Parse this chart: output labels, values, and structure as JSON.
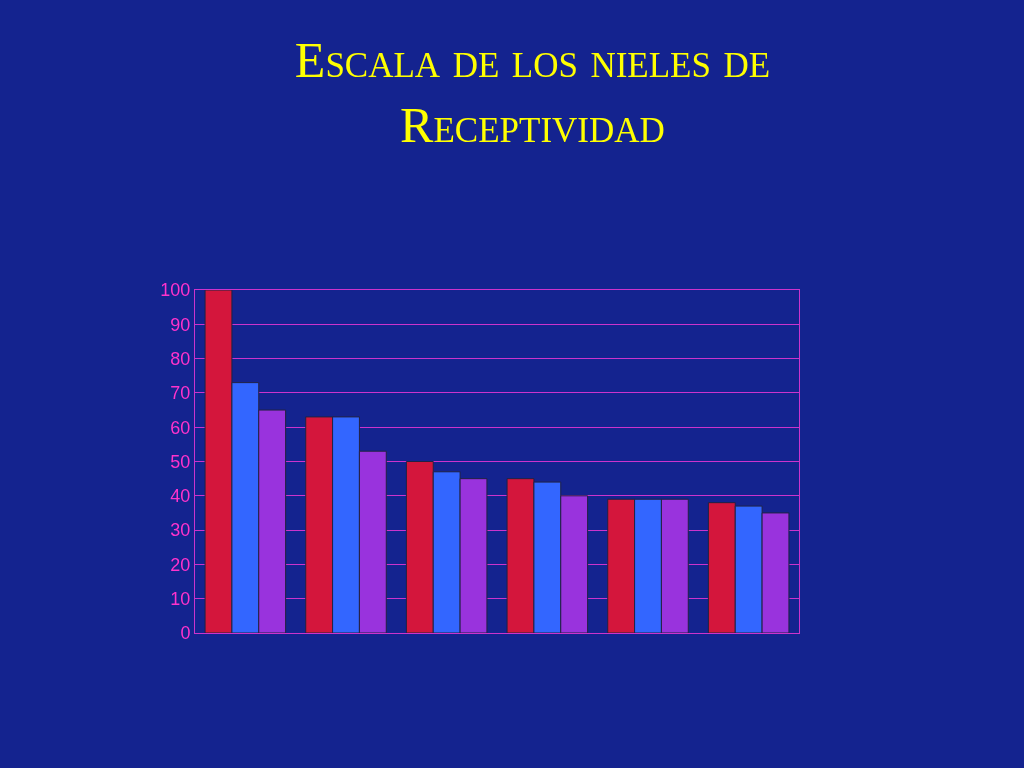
{
  "chart_data": {
    "type": "bar",
    "title": "Escala de los nieles de Receptividad",
    "categories": [
      null,
      null,
      null,
      null,
      null,
      null
    ],
    "series": [
      {
        "color": "#d4163c",
        "values": [
          100,
          63,
          50,
          45,
          39,
          38
        ]
      },
      {
        "color": "#3366ff",
        "values": [
          73,
          63,
          47,
          44,
          39,
          37
        ]
      },
      {
        "color": "#9933dd",
        "values": [
          65,
          53,
          45,
          40,
          39,
          35
        ]
      }
    ],
    "ylim": [
      0,
      100
    ],
    "yticks": [
      0,
      10,
      20,
      30,
      40,
      50,
      60,
      70,
      80,
      90,
      100
    ],
    "grid": "y"
  }
}
